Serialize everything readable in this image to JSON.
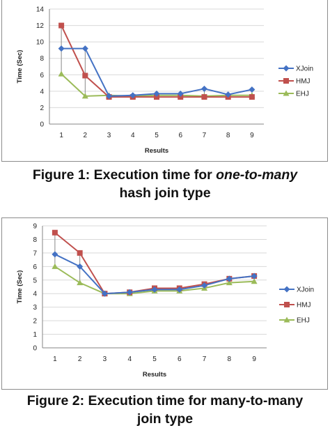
{
  "figures": [
    {
      "caption_line1_prefix": "Figure 1: Execution time for ",
      "caption_line1_italic": "one-to-many",
      "caption_line2": "hash join type"
    },
    {
      "caption_line1": "Figure 2: Execution time for many-to-many",
      "caption_line2": "join type"
    }
  ],
  "colors": {
    "XJoin": "#4472c4",
    "HMJ": "#c0504d",
    "EHJ": "#9bbb59",
    "grid": "#d9d9d9",
    "axis": "#868686",
    "connector": "#888888"
  },
  "chart_data": [
    {
      "type": "line",
      "title": "",
      "xlabel": "Results",
      "ylabel": "Time (Sec)",
      "x": [
        1,
        2,
        3,
        4,
        5,
        6,
        7,
        8,
        9
      ],
      "ylim": [
        0,
        14
      ],
      "yticks": [
        0,
        2,
        4,
        6,
        8,
        10,
        12,
        14
      ],
      "grid": true,
      "legend": "right",
      "series": [
        {
          "name": "XJoin",
          "marker": "diamond",
          "values": [
            9.2,
            9.2,
            3.4,
            3.5,
            3.7,
            3.7,
            4.3,
            3.6,
            4.2
          ]
        },
        {
          "name": "HMJ",
          "marker": "square",
          "values": [
            12.0,
            5.9,
            3.3,
            3.3,
            3.3,
            3.3,
            3.3,
            3.3,
            3.3
          ]
        },
        {
          "name": "EHJ",
          "marker": "triangle",
          "values": [
            6.1,
            3.4,
            3.5,
            3.4,
            3.5,
            3.5,
            3.4,
            3.5,
            3.5
          ]
        }
      ]
    },
    {
      "type": "line",
      "title": "",
      "xlabel": "Results",
      "ylabel": "Time (Sec)",
      "x": [
        1,
        2,
        3,
        4,
        5,
        6,
        7,
        8,
        9
      ],
      "ylim": [
        0,
        9
      ],
      "yticks": [
        0,
        1,
        2,
        3,
        4,
        5,
        6,
        7,
        8,
        9
      ],
      "grid": true,
      "legend": "right",
      "series": [
        {
          "name": "XJoin",
          "marker": "diamond",
          "values": [
            6.9,
            6.0,
            4.0,
            4.1,
            4.3,
            4.3,
            4.6,
            5.1,
            5.3
          ]
        },
        {
          "name": "HMJ",
          "marker": "square",
          "values": [
            8.5,
            7.0,
            4.0,
            4.1,
            4.4,
            4.4,
            4.7,
            5.1,
            5.3
          ]
        },
        {
          "name": "EHJ",
          "marker": "triangle",
          "values": [
            6.0,
            4.8,
            4.0,
            4.0,
            4.2,
            4.2,
            4.4,
            4.8,
            4.9
          ]
        }
      ]
    }
  ]
}
